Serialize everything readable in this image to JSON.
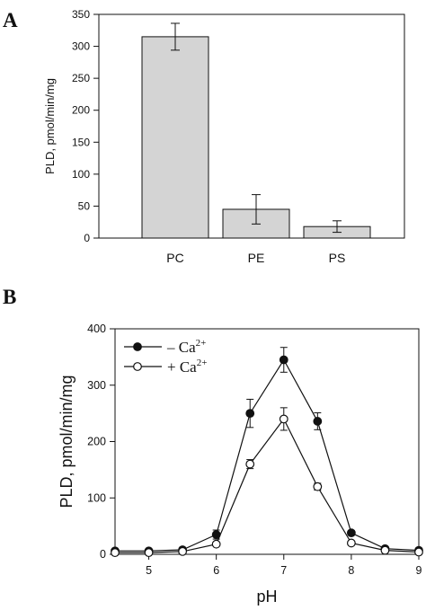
{
  "chart_data": [
    {
      "panel": "A",
      "type": "bar",
      "title": "",
      "xlabel": "",
      "ylabel": "PLD, pmol/min/mg",
      "categories": [
        "PC",
        "PE",
        "PS"
      ],
      "values": [
        315,
        45,
        18
      ],
      "errors": [
        21,
        23,
        9
      ],
      "ylim": [
        0,
        350
      ],
      "yticks": [
        0,
        50,
        100,
        150,
        200,
        250,
        300,
        350
      ],
      "grid": false,
      "bar_color": "#d4d4d4"
    },
    {
      "panel": "B",
      "type": "line",
      "title": "",
      "xlabel": "pH",
      "ylabel": "PLD, pmol/min/mg",
      "xlim": [
        4.5,
        9
      ],
      "ylim": [
        0,
        400
      ],
      "xticks": [
        5,
        6,
        7,
        8,
        9
      ],
      "yticks": [
        0,
        100,
        200,
        300,
        400
      ],
      "grid": false,
      "legend_placement": "top-left",
      "series": [
        {
          "name": "– Ca",
          "name_sup": "2+",
          "marker": "filled-circle",
          "x": [
            4.5,
            5,
            5.5,
            6,
            6.5,
            7,
            7.5,
            8,
            8.5,
            9
          ],
          "y": [
            6,
            6,
            8,
            35,
            250,
            345,
            236,
            38,
            10,
            7
          ],
          "errors": [
            2,
            2,
            2,
            8,
            25,
            22,
            15,
            4,
            2,
            2
          ]
        },
        {
          "name": "+ Ca",
          "name_sup": "2+",
          "marker": "open-circle",
          "x": [
            4.5,
            5,
            5.5,
            6,
            6.5,
            7,
            7.5,
            8,
            8.5,
            9
          ],
          "y": [
            3,
            3,
            5,
            18,
            160,
            240,
            120,
            20,
            7,
            4
          ],
          "errors": [
            2,
            2,
            2,
            3,
            8,
            20,
            6,
            3,
            2,
            2
          ]
        }
      ]
    }
  ],
  "panel_letters": {
    "a": "A",
    "b": "B"
  }
}
